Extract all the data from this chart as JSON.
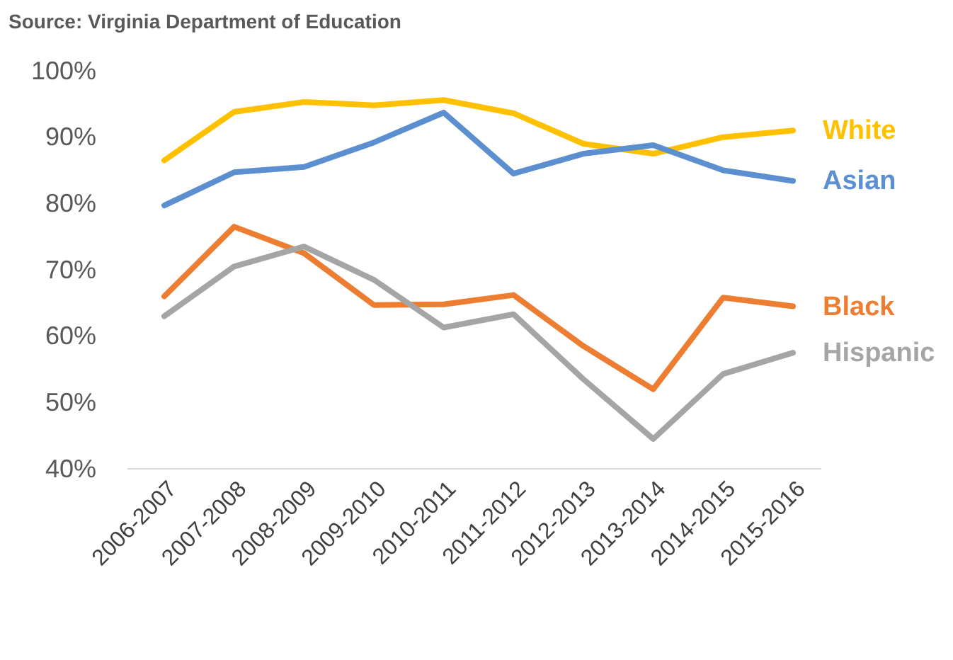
{
  "chart_data": {
    "type": "line",
    "annotations": [
      "Source: Virginia Department of Education"
    ],
    "categories": [
      "2006-2007",
      "2007-2008",
      "2008-2009",
      "2009-2010",
      "2010-2011",
      "2011-2012",
      "2012-2013",
      "2013-2014",
      "2014-2015",
      "2015-2016"
    ],
    "series": [
      {
        "name": "White",
        "color": "#ffc000",
        "values": [
          86.5,
          93.8,
          95.3,
          94.8,
          95.6,
          93.6,
          89,
          87.5,
          90,
          91
        ]
      },
      {
        "name": "Asian",
        "color": "#5b8fd0",
        "values": [
          79.7,
          84.7,
          85.5,
          89.2,
          93.7,
          84.5,
          87.5,
          88.8,
          85,
          83.4
        ]
      },
      {
        "name": "Black",
        "color": "#ed7d31",
        "values": [
          66,
          76.5,
          72.5,
          64.7,
          64.8,
          66.2,
          58.5,
          52,
          65.8,
          64.5
        ]
      },
      {
        "name": "Hispanic",
        "color": "#a5a5a5",
        "values": [
          63,
          70.5,
          73.5,
          68.5,
          61.3,
          63.3,
          53.5,
          44.5,
          54.3,
          57.5
        ]
      }
    ],
    "ylim": [
      40,
      100
    ],
    "yticks": [
      {
        "value": 40,
        "label": "40%"
      },
      {
        "value": 50,
        "label": "50%"
      },
      {
        "value": 60,
        "label": "60%"
      },
      {
        "value": 70,
        "label": "70%"
      },
      {
        "value": 80,
        "label": "80%"
      },
      {
        "value": 90,
        "label": "90%"
      },
      {
        "value": 100,
        "label": "100%"
      }
    ],
    "grid": false,
    "legend": false,
    "marker": "none",
    "line_style": "solid"
  }
}
